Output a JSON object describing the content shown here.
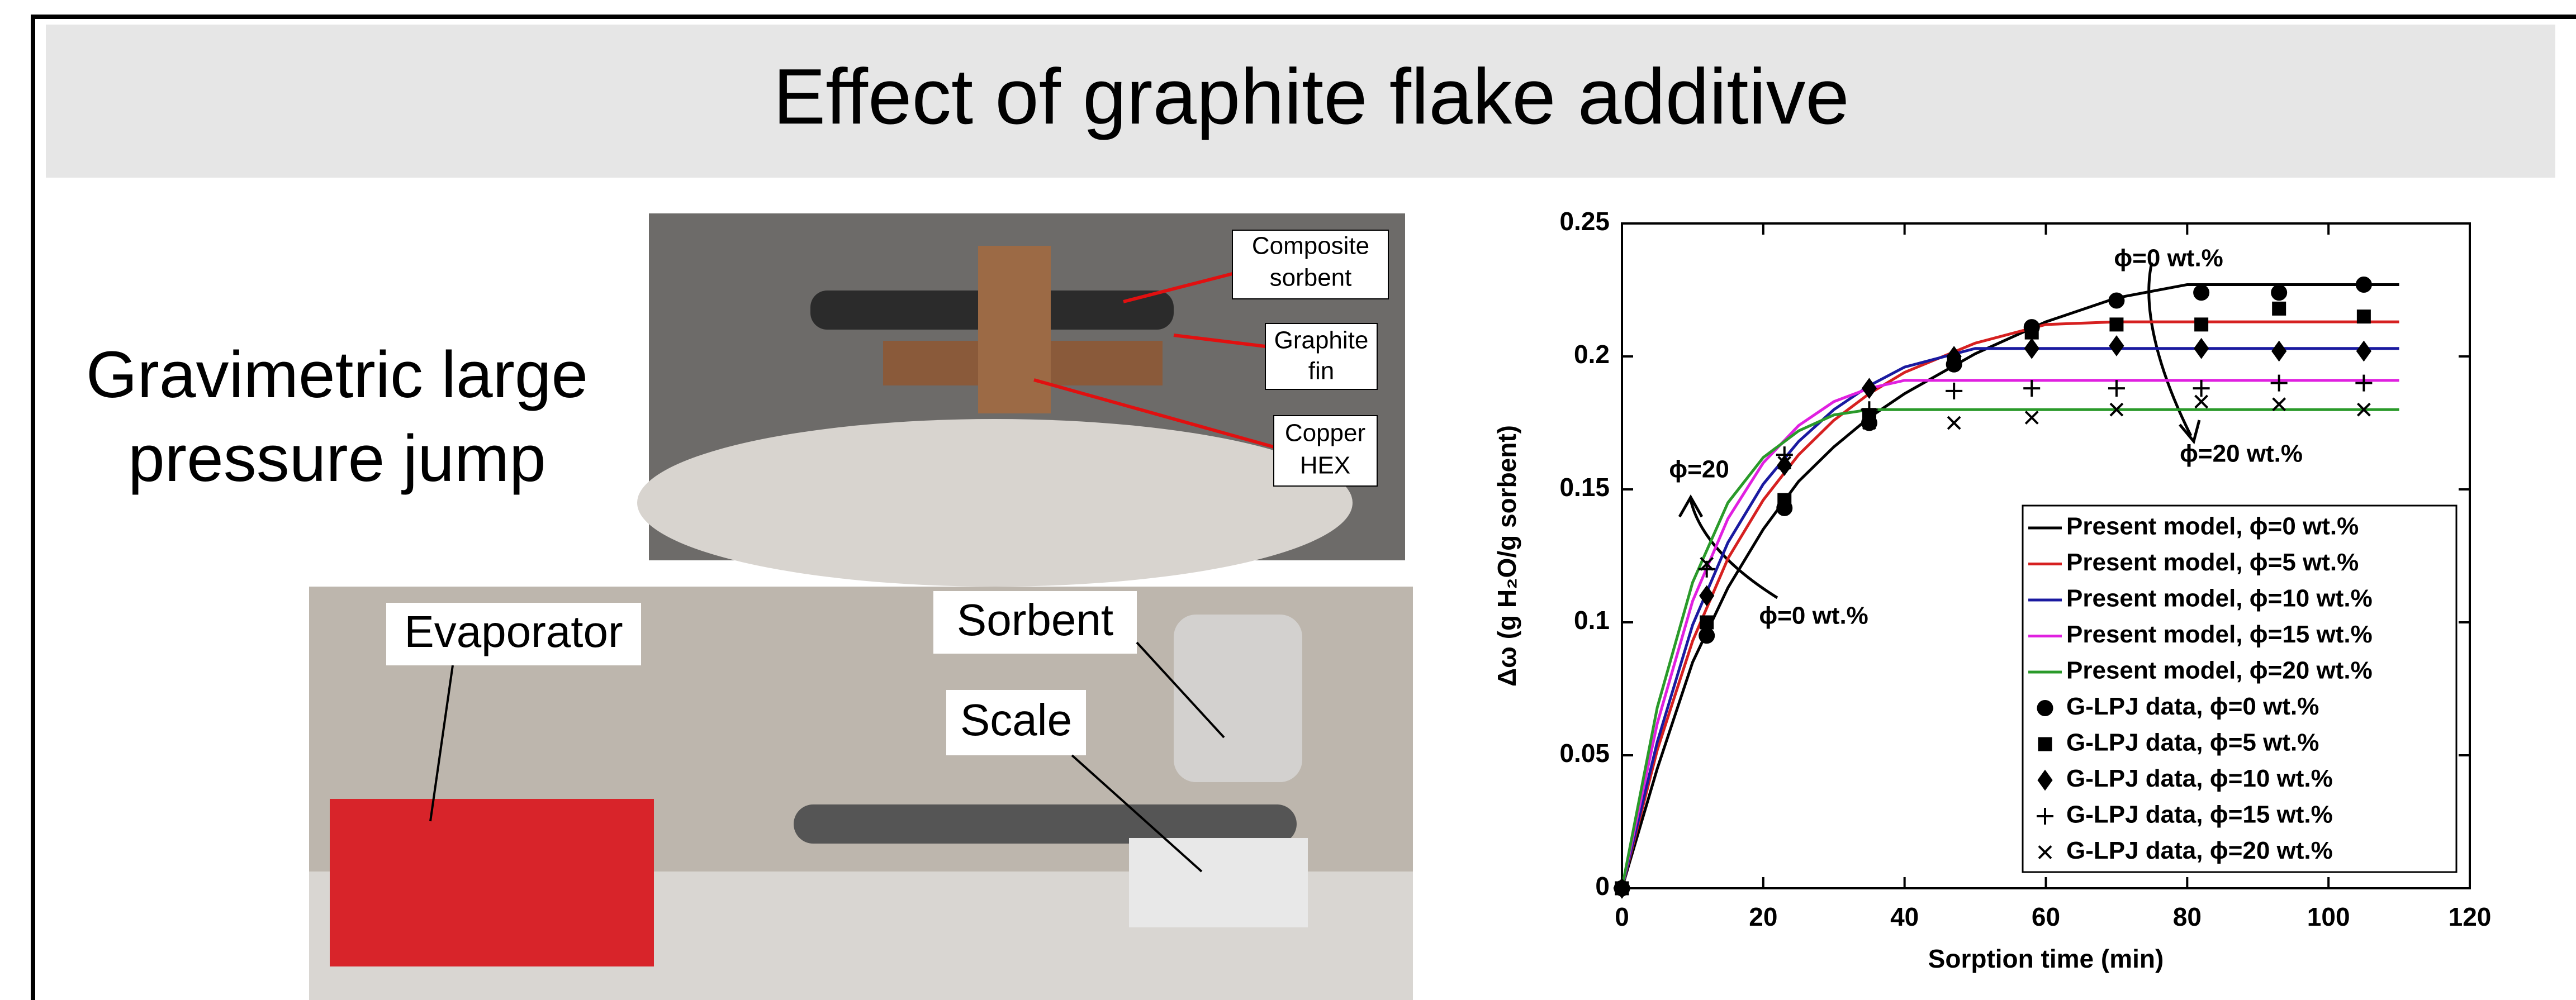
{
  "title": "Effect of graphite flake additive",
  "left_text": [
    "Gravimetric large",
    "pressure jump"
  ],
  "photo_labels": [
    [
      "Composite",
      "sorbent"
    ],
    [
      "Graphite",
      "fin"
    ],
    [
      "Copper",
      "HEX"
    ],
    [
      "Evaporator"
    ],
    [
      "Sorbent"
    ],
    [
      "Scale"
    ]
  ],
  "chart_data": {
    "type": "line",
    "x_label": "Sorption time (min)",
    "y_label": "Δω (g H₂O/g sorbent)",
    "xlim": [
      0,
      120
    ],
    "xticks": [
      0,
      20,
      40,
      60,
      80,
      100,
      120
    ],
    "ylim": [
      0,
      0.25
    ],
    "yticks": [
      0,
      0.05,
      0.1,
      0.15,
      0.2,
      0.25
    ],
    "annotations": [
      "ϕ=0 wt.%",
      "ϕ=20 wt.%",
      "ϕ=20",
      "ϕ=0 wt.%"
    ],
    "series": [
      {
        "name": "Present model, ϕ=0 wt.%",
        "color": "#000000",
        "style": "line",
        "x": [
          0,
          5,
          10,
          15,
          20,
          25,
          30,
          35,
          40,
          50,
          60,
          70,
          80,
          90,
          100,
          110
        ],
        "values": [
          0,
          0.045,
          0.085,
          0.113,
          0.135,
          0.153,
          0.166,
          0.177,
          0.186,
          0.201,
          0.213,
          0.222,
          0.227,
          0.227,
          0.227,
          0.227
        ]
      },
      {
        "name": "Present model, ϕ=5 wt.%",
        "color": "#d62020",
        "style": "line",
        "x": [
          0,
          5,
          10,
          15,
          20,
          25,
          30,
          35,
          40,
          50,
          60,
          70,
          80,
          90,
          100,
          110
        ],
        "values": [
          0,
          0.052,
          0.093,
          0.124,
          0.146,
          0.163,
          0.176,
          0.186,
          0.194,
          0.205,
          0.212,
          0.213,
          0.213,
          0.213,
          0.213,
          0.213
        ]
      },
      {
        "name": "Present model, ϕ=10 wt.%",
        "color": "#1a1aa0",
        "style": "line",
        "x": [
          0,
          5,
          10,
          15,
          20,
          25,
          30,
          35,
          40,
          50,
          60,
          70,
          80,
          90,
          100,
          110
        ],
        "values": [
          0,
          0.055,
          0.099,
          0.13,
          0.152,
          0.168,
          0.18,
          0.189,
          0.196,
          0.203,
          0.203,
          0.203,
          0.203,
          0.203,
          0.203,
          0.203
        ]
      },
      {
        "name": "Present model, ϕ=15 wt.%",
        "color": "#e020e0",
        "style": "line",
        "x": [
          0,
          5,
          10,
          15,
          20,
          25,
          30,
          35,
          40,
          50,
          60,
          70,
          80,
          90,
          100,
          110
        ],
        "values": [
          0,
          0.062,
          0.108,
          0.139,
          0.16,
          0.174,
          0.183,
          0.188,
          0.191,
          0.191,
          0.191,
          0.191,
          0.191,
          0.191,
          0.191,
          0.191
        ]
      },
      {
        "name": "Present model, ϕ=20 wt.%",
        "color": "#2a9a2a",
        "style": "line",
        "x": [
          0,
          5,
          10,
          15,
          20,
          25,
          30,
          35,
          40,
          50,
          60,
          70,
          80,
          90,
          100,
          110
        ],
        "values": [
          0,
          0.068,
          0.115,
          0.145,
          0.162,
          0.172,
          0.178,
          0.18,
          0.18,
          0.18,
          0.18,
          0.18,
          0.18,
          0.18,
          0.18,
          0.18
        ]
      },
      {
        "name": "G-LPJ data, ϕ=0 wt.%",
        "color": "#000000",
        "style": "marker",
        "marker": "circle",
        "x": [
          0,
          12,
          23,
          35,
          47,
          58,
          70,
          82,
          93,
          105
        ],
        "values": [
          0,
          0.095,
          0.143,
          0.175,
          0.197,
          0.211,
          0.221,
          0.224,
          0.224,
          0.227
        ]
      },
      {
        "name": "G-LPJ data, ϕ=5 wt.%",
        "color": "#000000",
        "style": "marker",
        "marker": "square",
        "x": [
          0,
          12,
          23,
          35,
          47,
          58,
          70,
          82,
          93,
          105
        ],
        "values": [
          0,
          0.1,
          0.146,
          0.178,
          0.198,
          0.209,
          0.212,
          0.212,
          0.218,
          0.215
        ]
      },
      {
        "name": "G-LPJ data, ϕ=10 wt.%",
        "color": "#000000",
        "style": "marker",
        "marker": "diamond",
        "x": [
          0,
          12,
          23,
          35,
          47,
          58,
          70,
          82,
          93,
          105
        ],
        "values": [
          0,
          0.11,
          0.159,
          0.188,
          0.2,
          0.203,
          0.204,
          0.203,
          0.202,
          0.202
        ]
      },
      {
        "name": "G-LPJ data, ϕ=15 wt.%",
        "color": "#000000",
        "style": "marker",
        "marker": "plus",
        "x": [
          0,
          12,
          23,
          35,
          47,
          58,
          70,
          82,
          93,
          105
        ],
        "values": [
          0,
          0.12,
          0.163,
          0.18,
          0.187,
          0.188,
          0.188,
          0.188,
          0.19,
          0.19
        ]
      },
      {
        "name": "G-LPJ data, ϕ=20 wt.%",
        "color": "#000000",
        "style": "marker",
        "marker": "cross",
        "x": [
          0,
          12,
          23,
          35,
          47,
          58,
          70,
          82,
          93,
          105
        ],
        "values": [
          0,
          0.122,
          0.16,
          0.175,
          0.175,
          0.177,
          0.18,
          0.183,
          0.182,
          0.18
        ]
      }
    ]
  }
}
